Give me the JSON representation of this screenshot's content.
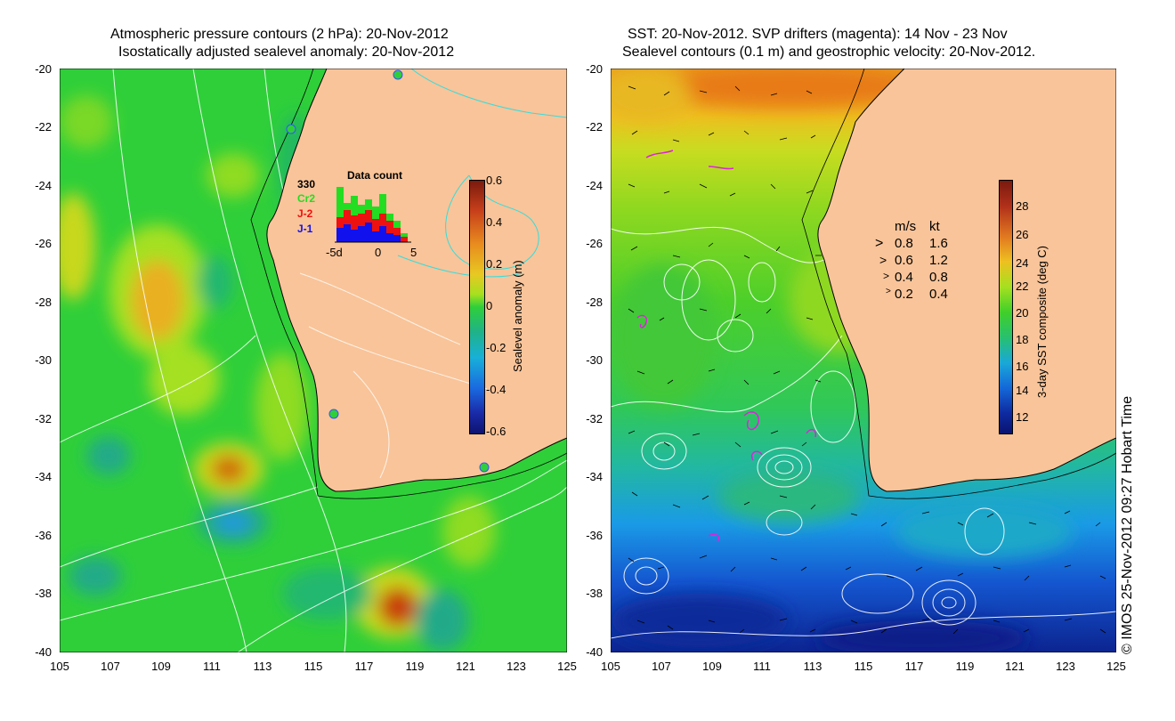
{
  "left_panel": {
    "title_line1": "Atmospheric pressure contours (2 hPa): 20-Nov-2012",
    "title_line2": "Isostatically adjusted sealevel anomaly: 20-Nov-2012",
    "colorbar": {
      "title": "Sealevel anomaly (m)",
      "ticks": [
        "0.6",
        "0.4",
        "0.2",
        "0",
        "-0.2",
        "-0.4",
        "-0.6"
      ]
    },
    "data_count": {
      "title": "Data count",
      "max_label": "330",
      "legend": [
        "Cr2",
        "J-2",
        "J-1"
      ],
      "legend_colors": [
        "#22dd22",
        "#ee1111",
        "#1111ee"
      ],
      "xticks": [
        "-5d",
        "0",
        "5"
      ]
    }
  },
  "right_panel": {
    "title_line1": "SST: 20-Nov-2012. SVP drifters (magenta): 14 Nov - 23 Nov",
    "title_line2": "Sealevel contours (0.1 m) and geostrophic velocity: 20-Nov-2012.",
    "colorbar": {
      "title": "3-day SST composite (deg C)",
      "ticks": [
        "28",
        "26",
        "24",
        "22",
        "20",
        "18",
        "16",
        "14",
        "12"
      ]
    },
    "velocity_legend": {
      "header_ms": "m/s",
      "header_kt": "kt",
      "rows": [
        {
          "ms": "0.8",
          "kt": "1.6"
        },
        {
          "ms": "0.6",
          "kt": "1.2"
        },
        {
          "ms": "0.4",
          "kt": "0.8"
        },
        {
          "ms": "0.2",
          "kt": "0.4"
        }
      ]
    }
  },
  "axes": {
    "y_ticks": [
      "-20",
      "-22",
      "-24",
      "-26",
      "-28",
      "-30",
      "-32",
      "-34",
      "-36",
      "-38",
      "-40"
    ],
    "x_ticks": [
      "105",
      "107",
      "109",
      "111",
      "113",
      "115",
      "117",
      "119",
      "121",
      "123",
      "125"
    ]
  },
  "copyright": "© IMOS 25-Nov-2012 09:27 Hobart Time",
  "colors": {
    "land": "#f9c499",
    "ocean_green": "#2fcf3a",
    "coast_line": "#000000",
    "contour": "#ffffff",
    "cyan_contour": "#33dddd",
    "drifter": "#dd22dd"
  }
}
